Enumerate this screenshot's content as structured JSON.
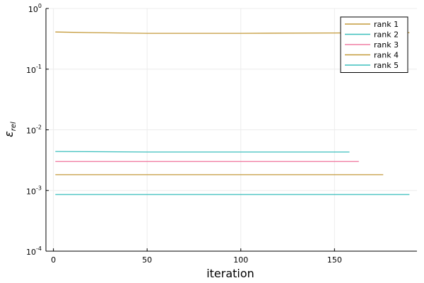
{
  "chart_data": {
    "type": "line",
    "title": "",
    "xlabel": "iteration",
    "ylabel": "ε_rel",
    "yscale": "log",
    "xlim": [
      -4,
      194
    ],
    "ylim": [
      0.0001,
      1
    ],
    "xticks": [
      0,
      50,
      100,
      150
    ],
    "xtick_labels": [
      "0",
      "50",
      "100",
      "150"
    ],
    "yticks": [
      0.0001,
      0.001,
      0.01,
      0.1,
      1
    ],
    "ytick_labels": [
      {
        "base": "10",
        "exp": "-4"
      },
      {
        "base": "10",
        "exp": "-3"
      },
      {
        "base": "10",
        "exp": "-2"
      },
      {
        "base": "10",
        "exp": "-1"
      },
      {
        "base": "10",
        "exp": "0"
      }
    ],
    "grid": true,
    "legend_position": "top-right",
    "series": [
      {
        "name": "rank 1",
        "color": "#c49a3a",
        "x": [
          1,
          20,
          50,
          100,
          150,
          190
        ],
        "y": [
          0.41,
          0.4,
          0.39,
          0.39,
          0.395,
          0.4
        ]
      },
      {
        "name": "rank 2",
        "color": "#3bbfbd",
        "x": [
          1,
          50,
          100,
          158
        ],
        "y": [
          0.0044,
          0.0043,
          0.0043,
          0.0043
        ]
      },
      {
        "name": "rank 3",
        "color": "#f07fa3",
        "x": [
          1,
          50,
          100,
          163
        ],
        "y": [
          0.003,
          0.003,
          0.003,
          0.003
        ]
      },
      {
        "name": "rank 4",
        "color": "#c49a3a",
        "x": [
          1,
          50,
          100,
          176
        ],
        "y": [
          0.00182,
          0.00182,
          0.00182,
          0.00182
        ]
      },
      {
        "name": "rank 5",
        "color": "#3bbfbd",
        "x": [
          1,
          50,
          100,
          190
        ],
        "y": [
          0.00086,
          0.00086,
          0.00086,
          0.00086
        ]
      }
    ]
  }
}
